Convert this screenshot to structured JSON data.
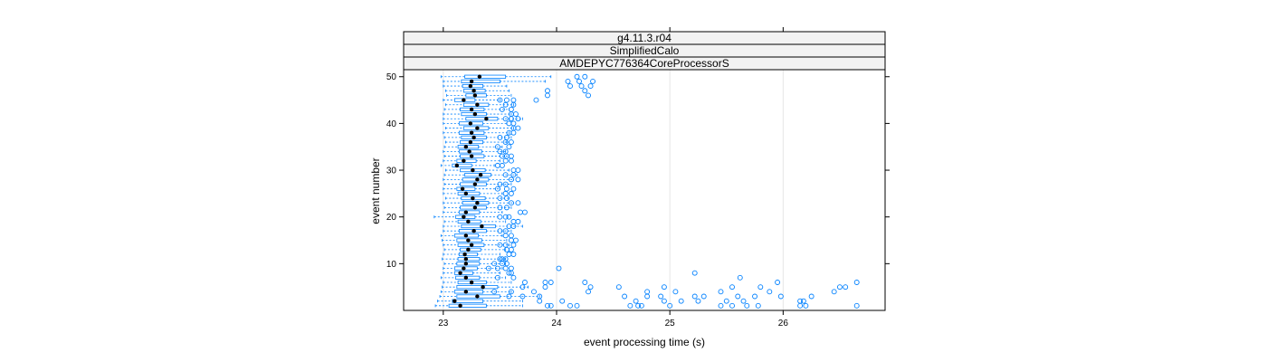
{
  "chart_data": {
    "type": "boxplot-horizontal",
    "strips": [
      "g4.11.3.r04",
      "SimplifiedCalo",
      "AMDEPYC776364CoreProcessorS"
    ],
    "xlabel": "event processing time (s)",
    "ylabel": "event number",
    "xlim": [
      22.65,
      26.9
    ],
    "ylim": [
      0,
      51.5
    ],
    "x_ticks": [
      23,
      24,
      25,
      26
    ],
    "y_ticks": [
      10,
      20,
      30,
      40,
      50
    ],
    "grid": "vertical",
    "colors": {
      "box": "#0080ff",
      "median": "#000000",
      "outlier": "#0080ff",
      "strip_bg": "#f2f2f2"
    },
    "box_summary": {
      "min": [
        22.93,
        22.95,
        22.97,
        22.98,
        22.99,
        23.0,
        22.98,
        23.0,
        23.0,
        23.01,
        22.99,
        23.0,
        23.01,
        23.0,
        22.99,
        22.98,
        23.0,
        23.0,
        23.01,
        22.92,
        23.0,
        23.01,
        23.0,
        23.02,
        23.0,
        23.0,
        23.01,
        23.0,
        23.01,
        23.02,
        22.98,
        23.0,
        23.01,
        23.0,
        23.01,
        23.02,
        23.01,
        23.0,
        23.02,
        23.0,
        23.0,
        23.0,
        23.01,
        23.02,
        23.0,
        23.03,
        23.02,
        23.0,
        23.0,
        22.98
      ],
      "q1": [
        23.05,
        23.08,
        23.12,
        23.1,
        23.12,
        23.13,
        23.11,
        23.1,
        23.1,
        23.12,
        23.13,
        23.14,
        23.15,
        23.13,
        23.12,
        23.1,
        23.14,
        23.16,
        23.13,
        23.11,
        23.14,
        23.15,
        23.17,
        23.16,
        23.13,
        23.12,
        23.15,
        23.17,
        23.19,
        23.15,
        23.08,
        23.12,
        23.15,
        23.14,
        23.13,
        23.15,
        23.16,
        23.14,
        23.18,
        23.14,
        23.2,
        23.16,
        23.15,
        23.18,
        23.1,
        23.2,
        23.18,
        23.17,
        23.16,
        23.19
      ],
      "median": [
        23.15,
        23.1,
        23.3,
        23.2,
        23.35,
        23.25,
        23.2,
        23.15,
        23.18,
        23.2,
        23.2,
        23.19,
        23.22,
        23.25,
        23.22,
        23.2,
        23.27,
        23.34,
        23.22,
        23.18,
        23.2,
        23.28,
        23.3,
        23.26,
        23.2,
        23.17,
        23.28,
        23.3,
        23.33,
        23.26,
        23.12,
        23.18,
        23.25,
        23.23,
        23.2,
        23.24,
        23.27,
        23.25,
        23.3,
        23.24,
        23.38,
        23.28,
        23.25,
        23.3,
        23.18,
        23.28,
        23.27,
        23.24,
        23.25,
        23.32
      ],
      "q3": [
        23.38,
        23.35,
        23.5,
        23.35,
        23.48,
        23.38,
        23.32,
        23.26,
        23.3,
        23.32,
        23.32,
        23.3,
        23.33,
        23.36,
        23.34,
        23.31,
        23.38,
        23.46,
        23.33,
        23.28,
        23.32,
        23.38,
        23.4,
        23.37,
        23.32,
        23.28,
        23.38,
        23.4,
        23.42,
        23.37,
        23.25,
        23.29,
        23.36,
        23.34,
        23.31,
        23.35,
        23.38,
        23.36,
        23.4,
        23.35,
        23.48,
        23.38,
        23.36,
        23.4,
        23.28,
        23.38,
        23.37,
        23.35,
        23.5,
        23.55
      ],
      "max": [
        23.7,
        23.7,
        23.85,
        23.6,
        23.75,
        23.6,
        23.55,
        23.5,
        23.52,
        23.55,
        23.55,
        23.5,
        23.55,
        23.58,
        23.56,
        23.52,
        23.6,
        23.7,
        23.55,
        23.48,
        23.52,
        23.6,
        23.62,
        23.58,
        23.52,
        23.5,
        23.6,
        23.62,
        23.65,
        23.58,
        23.45,
        23.5,
        23.58,
        23.55,
        23.52,
        23.56,
        23.6,
        23.58,
        23.62,
        23.56,
        23.7,
        23.6,
        23.58,
        23.62,
        23.5,
        23.6,
        23.58,
        23.56,
        23.9,
        23.95
      ]
    },
    "outliers": [
      [
        1,
        23.92
      ],
      [
        1,
        23.95
      ],
      [
        1,
        24.12
      ],
      [
        1,
        24.18
      ],
      [
        1,
        24.65
      ],
      [
        1,
        24.72
      ],
      [
        1,
        24.75
      ],
      [
        1,
        25.0
      ],
      [
        1,
        25.45
      ],
      [
        1,
        25.55
      ],
      [
        1,
        25.68
      ],
      [
        1,
        25.78
      ],
      [
        1,
        26.15
      ],
      [
        1,
        26.2
      ],
      [
        1,
        26.65
      ],
      [
        2,
        23.85
      ],
      [
        2,
        24.05
      ],
      [
        2,
        24.7
      ],
      [
        2,
        24.95
      ],
      [
        2,
        25.1
      ],
      [
        2,
        25.25
      ],
      [
        2,
        25.5
      ],
      [
        2,
        25.65
      ],
      [
        2,
        26.15
      ],
      [
        2,
        26.18
      ],
      [
        3,
        23.58
      ],
      [
        3,
        23.7
      ],
      [
        3,
        23.85
      ],
      [
        3,
        24.6
      ],
      [
        3,
        24.8
      ],
      [
        3,
        24.92
      ],
      [
        3,
        25.22
      ],
      [
        3,
        25.3
      ],
      [
        3,
        25.6
      ],
      [
        3,
        25.75
      ],
      [
        3,
        25.98
      ],
      [
        3,
        26.25
      ],
      [
        4,
        23.45
      ],
      [
        4,
        23.6
      ],
      [
        4,
        23.8
      ],
      [
        4,
        24.28
      ],
      [
        4,
        24.8
      ],
      [
        4,
        25.05
      ],
      [
        4,
        25.45
      ],
      [
        4,
        25.88
      ],
      [
        4,
        26.45
      ],
      [
        5,
        23.7
      ],
      [
        5,
        23.9
      ],
      [
        5,
        24.3
      ],
      [
        5,
        24.55
      ],
      [
        5,
        24.95
      ],
      [
        5,
        25.55
      ],
      [
        5,
        25.8
      ],
      [
        5,
        26.5
      ],
      [
        5,
        26.55
      ],
      [
        6,
        23.72
      ],
      [
        6,
        23.9
      ],
      [
        6,
        23.95
      ],
      [
        6,
        24.25
      ],
      [
        6,
        25.95
      ],
      [
        6,
        26.65
      ],
      [
        7,
        23.48
      ],
      [
        7,
        23.62
      ],
      [
        7,
        25.62
      ],
      [
        8,
        23.58
      ],
      [
        8,
        23.6
      ],
      [
        8,
        25.22
      ],
      [
        9,
        23.4
      ],
      [
        9,
        23.48
      ],
      [
        9,
        23.55
      ],
      [
        9,
        23.6
      ],
      [
        9,
        24.02
      ],
      [
        10,
        23.45
      ],
      [
        10,
        23.52
      ],
      [
        10,
        23.56
      ],
      [
        11,
        23.5
      ],
      [
        11,
        23.52
      ],
      [
        11,
        23.55
      ],
      [
        12,
        23.58
      ],
      [
        12,
        23.62
      ],
      [
        13,
        23.56
      ],
      [
        13,
        23.6
      ],
      [
        14,
        23.5
      ],
      [
        14,
        23.55
      ],
      [
        14,
        23.62
      ],
      [
        15,
        23.6
      ],
      [
        15,
        23.64
      ],
      [
        16,
        23.55
      ],
      [
        16,
        23.6
      ],
      [
        17,
        23.5
      ],
      [
        17,
        23.55
      ],
      [
        18,
        23.58
      ],
      [
        18,
        23.62
      ],
      [
        19,
        23.62
      ],
      [
        19,
        23.66
      ],
      [
        20,
        23.5
      ],
      [
        20,
        23.55
      ],
      [
        20,
        23.58
      ],
      [
        21,
        23.68
      ],
      [
        21,
        23.72
      ],
      [
        22,
        23.5
      ],
      [
        22,
        23.56
      ],
      [
        23,
        23.6
      ],
      [
        23,
        23.66
      ],
      [
        24,
        23.5
      ],
      [
        24,
        23.56
      ],
      [
        25,
        23.55
      ],
      [
        25,
        23.6
      ],
      [
        26,
        23.48
      ],
      [
        26,
        23.56
      ],
      [
        26,
        23.62
      ],
      [
        27,
        23.5
      ],
      [
        27,
        23.55
      ],
      [
        28,
        23.6
      ],
      [
        28,
        23.66
      ],
      [
        29,
        23.55
      ],
      [
        29,
        23.62
      ],
      [
        30,
        23.62
      ],
      [
        30,
        23.66
      ],
      [
        31,
        23.48
      ],
      [
        31,
        23.52
      ],
      [
        32,
        23.55
      ],
      [
        32,
        23.6
      ],
      [
        33,
        23.52
      ],
      [
        33,
        23.56
      ],
      [
        33,
        23.6
      ],
      [
        34,
        23.5
      ],
      [
        34,
        23.55
      ],
      [
        35,
        23.48
      ],
      [
        35,
        23.58
      ],
      [
        36,
        23.55
      ],
      [
        36,
        23.6
      ],
      [
        37,
        23.5
      ],
      [
        37,
        23.56
      ],
      [
        38,
        23.58
      ],
      [
        38,
        23.62
      ],
      [
        39,
        23.62
      ],
      [
        39,
        23.66
      ],
      [
        40,
        23.58
      ],
      [
        40,
        23.62
      ],
      [
        41,
        23.55
      ],
      [
        41,
        23.6
      ],
      [
        41,
        23.66
      ],
      [
        42,
        23.6
      ],
      [
        42,
        23.64
      ],
      [
        43,
        23.52
      ],
      [
        43,
        23.6
      ],
      [
        44,
        23.55
      ],
      [
        44,
        23.62
      ],
      [
        45,
        23.5
      ],
      [
        45,
        23.56
      ],
      [
        45,
        23.62
      ],
      [
        45,
        23.82
      ],
      [
        46,
        23.92
      ],
      [
        46,
        24.28
      ],
      [
        47,
        23.92
      ],
      [
        47,
        24.25
      ],
      [
        48,
        24.12
      ],
      [
        48,
        24.22
      ],
      [
        48,
        24.3
      ],
      [
        49,
        24.1
      ],
      [
        49,
        24.2
      ],
      [
        49,
        24.32
      ],
      [
        50,
        24.18
      ],
      [
        50,
        24.25
      ]
    ]
  }
}
